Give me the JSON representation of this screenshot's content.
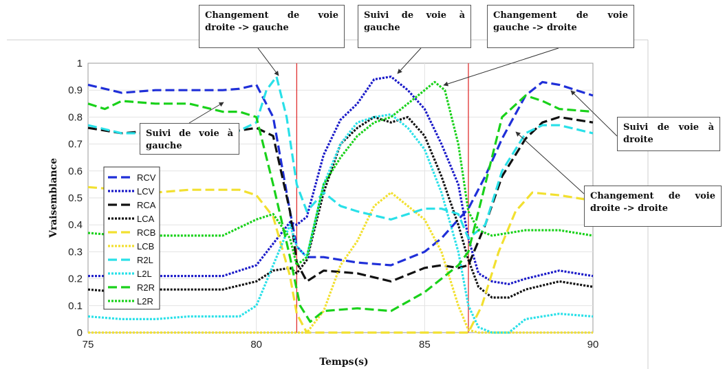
{
  "chart_data": {
    "type": "line",
    "xlabel": "Temps(s)",
    "ylabel": "Vraisemblance",
    "xlim": [
      75,
      90
    ],
    "ylim": [
      0,
      1
    ],
    "xticks": [
      "75",
      "80",
      "85",
      "90"
    ],
    "yticks": [
      "0",
      "0.1",
      "0.2",
      "0.3",
      "0.4",
      "0.5",
      "0.6",
      "0.7",
      "0.8",
      "0.9",
      "1"
    ],
    "grid": true,
    "legend_position": "left",
    "vertical_markers": [
      81.2,
      86.3
    ],
    "marker_color": "#e03030",
    "series": [
      {
        "name": "RCV",
        "color": "#1f2fd8",
        "style": "dashed",
        "x": [
          75,
          76,
          77,
          78,
          79,
          79.5,
          80,
          80.5,
          81,
          81.2,
          81.5,
          82,
          83,
          84,
          85,
          85.5,
          86,
          86.3,
          86.8,
          87.3,
          88,
          88.5,
          89,
          90
        ],
        "y": [
          0.92,
          0.89,
          0.9,
          0.9,
          0.9,
          0.905,
          0.92,
          0.8,
          0.45,
          0.32,
          0.28,
          0.28,
          0.26,
          0.25,
          0.3,
          0.35,
          0.42,
          0.46,
          0.58,
          0.72,
          0.88,
          0.93,
          0.92,
          0.88
        ]
      },
      {
        "name": "LCV",
        "color": "#1a1ac8",
        "style": "dotted",
        "x": [
          75,
          76,
          77,
          78,
          79,
          80,
          80.5,
          81,
          81.2,
          81.5,
          82,
          82.5,
          83,
          83.5,
          84,
          84.5,
          85,
          85.5,
          86,
          86.3,
          86.6,
          87,
          87.5,
          88,
          89,
          90
        ],
        "y": [
          0.21,
          0.21,
          0.21,
          0.21,
          0.21,
          0.25,
          0.33,
          0.41,
          0.4,
          0.43,
          0.66,
          0.79,
          0.85,
          0.94,
          0.95,
          0.9,
          0.83,
          0.7,
          0.55,
          0.35,
          0.22,
          0.19,
          0.18,
          0.2,
          0.23,
          0.21
        ]
      },
      {
        "name": "RCA",
        "color": "#111111",
        "style": "dashed",
        "x": [
          75,
          76,
          77,
          78,
          79,
          80,
          80.5,
          81,
          81.2,
          81.5,
          82,
          83,
          84,
          85,
          85.5,
          86,
          86.3,
          86.8,
          87.3,
          88,
          88.5,
          89,
          90
        ],
        "y": [
          0.76,
          0.74,
          0.75,
          0.75,
          0.74,
          0.76,
          0.73,
          0.45,
          0.26,
          0.19,
          0.23,
          0.22,
          0.19,
          0.24,
          0.25,
          0.24,
          0.25,
          0.4,
          0.58,
          0.72,
          0.78,
          0.8,
          0.78
        ]
      },
      {
        "name": "LCA",
        "color": "#111111",
        "style": "dotted",
        "x": [
          75,
          76,
          77,
          78,
          79,
          80,
          80.5,
          81,
          81.2,
          81.5,
          82,
          82.5,
          83,
          83.5,
          84,
          84.5,
          85,
          85.5,
          86,
          86.3,
          86.6,
          87,
          87.5,
          88,
          89,
          90
        ],
        "y": [
          0.16,
          0.15,
          0.16,
          0.16,
          0.16,
          0.19,
          0.23,
          0.24,
          0.22,
          0.27,
          0.52,
          0.7,
          0.76,
          0.8,
          0.78,
          0.8,
          0.73,
          0.58,
          0.4,
          0.27,
          0.17,
          0.13,
          0.13,
          0.16,
          0.19,
          0.17
        ]
      },
      {
        "name": "RCB",
        "color": "#f2e030",
        "style": "dashed",
        "x": [
          75,
          76,
          77,
          78,
          79,
          79.5,
          80,
          80.5,
          81,
          81.2,
          81.5,
          82,
          83,
          84,
          85,
          86,
          86.3,
          86.7,
          87.2,
          87.7,
          88.2,
          89,
          90
        ],
        "y": [
          0.54,
          0.53,
          0.52,
          0.53,
          0.53,
          0.53,
          0.51,
          0.43,
          0.21,
          0.07,
          0,
          0,
          0,
          0,
          0,
          0,
          0,
          0.1,
          0.3,
          0.45,
          0.52,
          0.51,
          0.49
        ]
      },
      {
        "name": "LCB",
        "color": "#f2e030",
        "style": "dotted",
        "x": [
          75,
          80,
          81,
          81.5,
          82,
          82.5,
          83,
          83.5,
          84,
          84.5,
          85,
          85.5,
          86,
          86.3,
          86.6,
          87,
          88,
          90
        ],
        "y": [
          0,
          0,
          0,
          0,
          0.08,
          0.25,
          0.34,
          0.47,
          0.52,
          0.47,
          0.42,
          0.3,
          0.1,
          0.01,
          0,
          0,
          0,
          0
        ]
      },
      {
        "name": "R2L",
        "color": "#29e0e8",
        "style": "dashed",
        "x": [
          75,
          76,
          77,
          78,
          79,
          79.5,
          80,
          80.3,
          80.6,
          80.9,
          81.2,
          81.5,
          82,
          82.5,
          83,
          84,
          85,
          85.5,
          86,
          86.3,
          86.8,
          87.3,
          88,
          88.5,
          89,
          90
        ],
        "y": [
          0.77,
          0.74,
          0.74,
          0.74,
          0.74,
          0.75,
          0.78,
          0.9,
          0.95,
          0.8,
          0.55,
          0.45,
          0.52,
          0.47,
          0.45,
          0.42,
          0.46,
          0.46,
          0.44,
          0.35,
          0.4,
          0.6,
          0.74,
          0.77,
          0.77,
          0.74
        ]
      },
      {
        "name": "L2L",
        "color": "#29e0e8",
        "style": "dotted",
        "x": [
          75,
          76,
          77,
          78,
          79,
          79.5,
          80,
          80.5,
          81,
          81.2,
          81.5,
          82,
          82.5,
          83,
          83.5,
          84,
          84.5,
          85,
          85.5,
          86,
          86.3,
          86.6,
          87,
          87.5,
          88,
          89,
          90
        ],
        "y": [
          0.06,
          0.05,
          0.05,
          0.06,
          0.06,
          0.06,
          0.1,
          0.25,
          0.4,
          0.32,
          0.28,
          0.55,
          0.7,
          0.78,
          0.8,
          0.81,
          0.76,
          0.68,
          0.52,
          0.3,
          0.1,
          0.02,
          0,
          0,
          0.05,
          0.07,
          0.06
        ]
      },
      {
        "name": "R2R",
        "color": "#19d11a",
        "style": "dashed",
        "x": [
          75,
          75.5,
          76,
          77,
          78,
          79,
          79.5,
          80,
          80.5,
          81,
          81.3,
          81.6,
          82,
          83,
          84,
          85,
          85.5,
          86,
          86.3,
          86.8,
          87.3,
          88,
          88.5,
          89,
          90
        ],
        "y": [
          0.85,
          0.83,
          0.86,
          0.85,
          0.85,
          0.82,
          0.82,
          0.8,
          0.55,
          0.28,
          0.1,
          0.04,
          0.08,
          0.09,
          0.08,
          0.15,
          0.2,
          0.25,
          0.3,
          0.55,
          0.8,
          0.88,
          0.86,
          0.83,
          0.82
        ]
      },
      {
        "name": "L2R",
        "color": "#19d11a",
        "style": "dotted",
        "x": [
          75,
          76,
          77,
          78,
          79,
          80,
          80.5,
          81,
          81.2,
          81.5,
          82,
          82.5,
          83,
          83.5,
          84,
          84.5,
          85,
          85.3,
          85.6,
          86,
          86.3,
          86.6,
          87,
          87.5,
          88,
          89,
          90
        ],
        "y": [
          0.37,
          0.36,
          0.36,
          0.36,
          0.36,
          0.42,
          0.44,
          0.35,
          0.25,
          0.28,
          0.55,
          0.65,
          0.73,
          0.78,
          0.8,
          0.85,
          0.9,
          0.93,
          0.9,
          0.7,
          0.45,
          0.38,
          0.36,
          0.37,
          0.38,
          0.38,
          0.36
        ]
      }
    ],
    "annotations": [
      {
        "text": "Changement de voie droite -> gauche"
      },
      {
        "text": "Suivi de voie à gauche"
      },
      {
        "text": "Changement de voie gauche -> droite"
      },
      {
        "text": "Suivi de voie à gauche"
      },
      {
        "text": "Suivi de voie à droite"
      },
      {
        "text": "Changement de voie droite -> droite"
      }
    ]
  }
}
